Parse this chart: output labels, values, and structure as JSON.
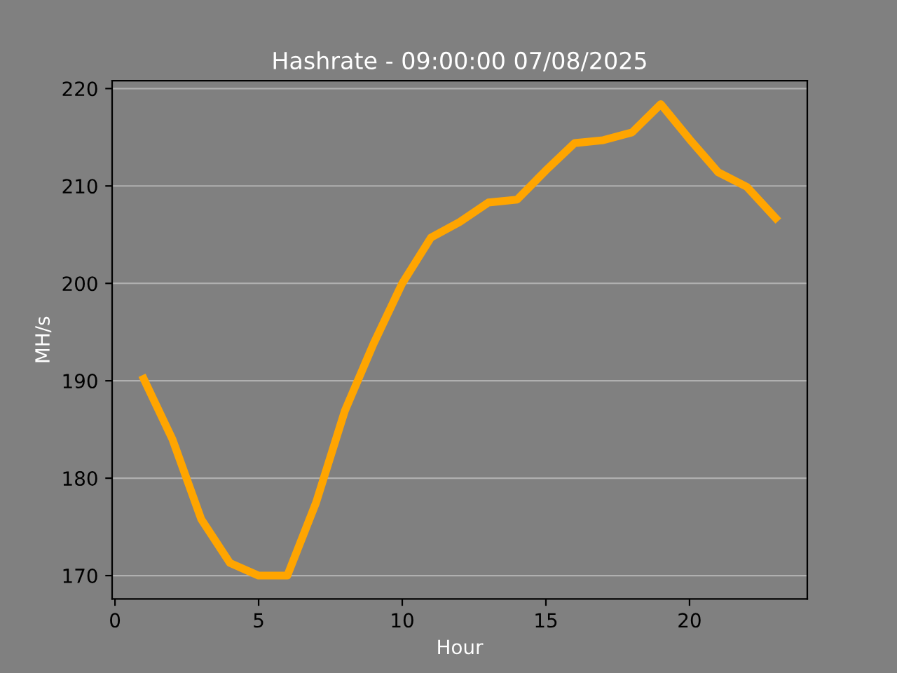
{
  "chart_data": {
    "type": "line",
    "title": "Hashrate - 09:00:00 07/08/2025",
    "xlabel": "Hour",
    "ylabel": "MH/s",
    "x": [
      1,
      2,
      3,
      4,
      5,
      6,
      7,
      8,
      9,
      10,
      11,
      12,
      13,
      14,
      15,
      16,
      17,
      18,
      19,
      20,
      21,
      22,
      23
    ],
    "series": [
      {
        "color": "#ffa500",
        "values": [
          190.2,
          184.0,
          175.8,
          171.3,
          170.0,
          170.0,
          177.5,
          186.9,
          193.8,
          200.0,
          204.7,
          206.3,
          208.3,
          208.6,
          211.6,
          214.4,
          214.7,
          215.5,
          218.4,
          214.8,
          211.4,
          209.9,
          206.7
        ]
      }
    ],
    "xlim": [
      -0.1,
      24.1
    ],
    "ylim": [
      167.6,
      220.8
    ],
    "xticks": [
      0,
      5,
      10,
      15,
      20
    ],
    "yticks": [
      170,
      180,
      190,
      200,
      210,
      220
    ],
    "grid": "y",
    "legend": false,
    "marker": "none",
    "line_style": "solid"
  }
}
